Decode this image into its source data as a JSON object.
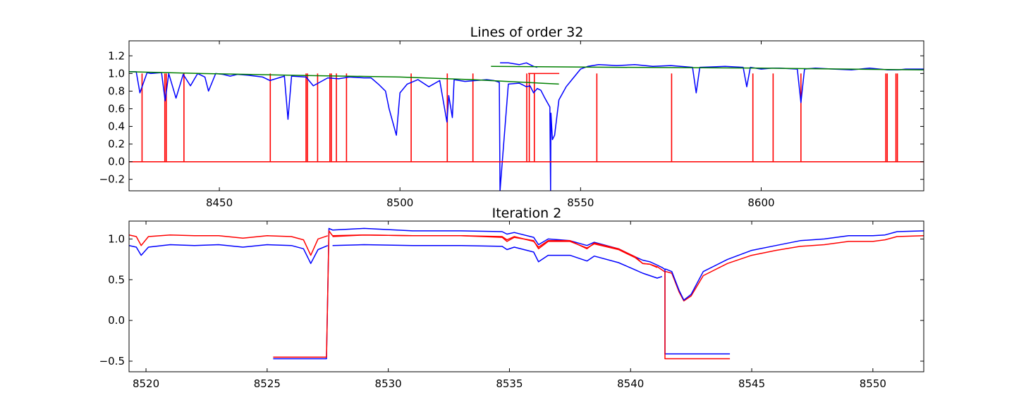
{
  "colors": {
    "spectrum": "#0000ff",
    "mask": "#ff0000",
    "continuum": "#008000",
    "axes": "#000000",
    "background": "#ffffff"
  },
  "chart_data": [
    {
      "type": "line",
      "title": "Lines of order 32",
      "xlabel": "",
      "ylabel": "",
      "xlim": [
        8425,
        8645
      ],
      "ylim": [
        -0.33,
        1.37
      ],
      "xticks": [
        8450,
        8500,
        8550,
        8600
      ],
      "yticks": [
        -0.2,
        0.0,
        0.2,
        0.4,
        0.6,
        0.8,
        1.0,
        1.2
      ],
      "xtick_labels": [
        "8450",
        "8500",
        "8550",
        "8600"
      ],
      "ytick_labels": [
        "−0.2",
        "0.0",
        "0.2",
        "0.4",
        "0.6",
        "0.8",
        "1.0",
        "1.2"
      ],
      "grid": false,
      "series": [
        {
          "color": "#0000ff",
          "style": "spectrum",
          "x": [
            8425,
            8427,
            8428,
            8430,
            8431,
            8434,
            8435,
            8436,
            8438,
            8440,
            8442,
            8444,
            8446,
            8447,
            8449,
            8451,
            8453,
            8455,
            8458,
            8462,
            8464,
            8468,
            8469,
            8470,
            8474,
            8476,
            8480,
            8483,
            8486,
            8490,
            8492,
            8494,
            8496,
            8497,
            8499,
            8500,
            8502,
            8505,
            8508,
            8511,
            8513,
            8513.5,
            8514.5,
            8515,
            8518,
            8521,
            8524,
            8526,
            8527.5,
            8527.7,
            8530,
            8533,
            8535,
            8536,
            8537,
            8538,
            8539,
            8540,
            8541.5,
            8541.7,
            8541.8,
            8542.2,
            8542.8,
            8544,
            8546,
            8548,
            8550,
            8552,
            8555,
            8560,
            8565,
            8570,
            8575,
            8581,
            8582,
            8583,
            8590,
            8595,
            8596,
            8597,
            8600,
            8603,
            8605,
            8610,
            8611,
            8612,
            8615,
            8620,
            8625,
            8630,
            8635,
            8638,
            8640,
            8645
          ],
          "y": [
            1.02,
            1.02,
            0.78,
            1.01,
            1.0,
            1.01,
            0.69,
            1.0,
            0.72,
            0.99,
            0.86,
            1.0,
            0.96,
            0.8,
            1.0,
            0.99,
            0.97,
            0.99,
            0.98,
            0.96,
            0.92,
            0.97,
            0.48,
            0.97,
            0.96,
            0.86,
            0.95,
            0.94,
            0.96,
            0.95,
            0.95,
            0.88,
            0.8,
            0.6,
            0.3,
            0.78,
            0.88,
            0.93,
            0.85,
            0.92,
            0.45,
            0.75,
            0.5,
            0.93,
            0.91,
            0.92,
            0.93,
            0.92,
            0.9,
            -0.33,
            0.88,
            0.89,
            0.85,
            0.86,
            0.78,
            0.83,
            0.81,
            0.73,
            0.62,
            -0.33,
            0.55,
            0.25,
            0.3,
            0.7,
            0.85,
            0.95,
            1.05,
            1.08,
            1.1,
            1.09,
            1.1,
            1.08,
            1.09,
            1.07,
            0.78,
            1.07,
            1.08,
            1.07,
            0.85,
            1.07,
            1.05,
            1.06,
            1.06,
            1.05,
            0.67,
            1.05,
            1.06,
            1.05,
            1.04,
            1.06,
            1.04,
            1.04,
            1.05,
            1.05
          ]
        },
        {
          "color": "#0000ff",
          "style": "spectrum",
          "x": [
            8527.7,
            8528,
            8530,
            8533,
            8535,
            8536,
            8537,
            8538
          ],
          "y": [
            1.12,
            1.12,
            1.12,
            1.1,
            1.12,
            1.1,
            1.08,
            1.07
          ]
        },
        {
          "color": "#008000",
          "style": "continuum",
          "x": [
            8425,
            8445,
            8470,
            8500,
            8520,
            8544
          ],
          "y": [
            1.02,
            1.0,
            0.98,
            0.96,
            0.93,
            0.88
          ]
        },
        {
          "color": "#008000",
          "style": "continuum",
          "x": [
            8525.2,
            8560,
            8600,
            8645
          ],
          "y": [
            1.08,
            1.07,
            1.06,
            1.04
          ]
        },
        {
          "color": "#ff0000",
          "style": "mask",
          "x": [
            8425,
            8645
          ],
          "y": [
            0,
            0
          ]
        },
        {
          "color": "#ff0000",
          "style": "short",
          "x": [
            8535.5,
            8544.1
          ],
          "y": [
            1.0,
            1.0
          ]
        }
      ],
      "mask_lines": [
        {
          "x": 8428.6
        },
        {
          "x": 8434.9
        },
        {
          "x": 8435.3
        },
        {
          "x": 8440.2
        },
        {
          "x": 8464.1
        },
        {
          "x": 8474.0
        },
        {
          "x": 8474.4
        },
        {
          "x": 8477.2
        },
        {
          "x": 8480.6
        },
        {
          "x": 8481.0
        },
        {
          "x": 8482.4
        },
        {
          "x": 8485.2
        },
        {
          "x": 8503.1
        },
        {
          "x": 8513.1
        },
        {
          "x": 8520.2
        },
        {
          "x": 8535.1
        },
        {
          "x": 8535.8
        },
        {
          "x": 8537.2
        },
        {
          "x": 8554.5
        },
        {
          "x": 8575.2
        },
        {
          "x": 8597.7
        },
        {
          "x": 8603.3
        },
        {
          "x": 8611.0
        },
        {
          "x": 8634.5
        },
        {
          "x": 8634.9
        },
        {
          "x": 8637.3
        },
        {
          "x": 8637.7
        }
      ]
    },
    {
      "type": "line",
      "title": "Iteration 2",
      "xlabel": "",
      "ylabel": "",
      "xlim": [
        8519.3,
        8552.1
      ],
      "ylim": [
        -0.63,
        1.22
      ],
      "xticks": [
        8520,
        8525,
        8530,
        8535,
        8540,
        8545,
        8550
      ],
      "yticks": [
        -0.5,
        0.0,
        0.5,
        1.0
      ],
      "xtick_labels": [
        "8520",
        "8525",
        "8530",
        "8535",
        "8540",
        "8545",
        "8550"
      ],
      "ytick_labels": [
        "−0.5",
        "0.0",
        "0.5",
        "1.0"
      ],
      "grid": false,
      "series": [
        {
          "color": "#0000ff",
          "x": [
            8519.3,
            8519.6,
            8519.8,
            8520.1,
            8521,
            8522,
            8523,
            8524,
            8525,
            8526,
            8526.5,
            8526.8,
            8527.1,
            8527.5
          ],
          "y": [
            0.92,
            0.9,
            0.8,
            0.9,
            0.93,
            0.92,
            0.93,
            0.9,
            0.93,
            0.92,
            0.88,
            0.7,
            0.87,
            0.92
          ]
        },
        {
          "color": "#ff0000",
          "x": [
            8519.3,
            8519.6,
            8519.8,
            8520.1,
            8521,
            8522,
            8523,
            8524,
            8525,
            8526,
            8526.5,
            8526.8,
            8527.1,
            8527.5
          ],
          "y": [
            1.05,
            1.03,
            0.92,
            1.03,
            1.05,
            1.04,
            1.04,
            1.01,
            1.04,
            1.03,
            0.99,
            0.8,
            1.0,
            1.04
          ]
        },
        {
          "color": "#0000ff",
          "x": [
            8525.25,
            8527.45,
            8527.55,
            8527.7,
            8529,
            8531,
            8533,
            8534.7,
            8534.9,
            8535.2,
            8536,
            8536.2,
            8536.6,
            8537.5,
            8538.2,
            8538.5,
            8539.5,
            8540.2,
            8540.5,
            8540.8,
            8541.1,
            8541.3,
            8541.4
          ],
          "y": [
            -0.47,
            -0.47,
            1.13,
            1.11,
            1.13,
            1.1,
            1.1,
            1.09,
            1.06,
            1.08,
            1.02,
            0.93,
            1.0,
            0.98,
            0.92,
            0.96,
            0.88,
            0.78,
            0.74,
            0.72,
            0.68,
            0.65,
            0.63
          ]
        },
        {
          "color": "#ff0000",
          "x": [
            8525.25,
            8527.45,
            8527.55,
            8527.7,
            8529,
            8531,
            8533,
            8534.7,
            8534.9,
            8535.2,
            8536,
            8536.2,
            8536.6,
            8537.5,
            8538.2,
            8538.5,
            8539.5,
            8540.2,
            8540.5,
            8540.8,
            8541.1,
            8541.3,
            8541.4
          ],
          "y": [
            -0.45,
            -0.45,
            1.1,
            1.04,
            1.05,
            1.04,
            1.04,
            1.02,
            0.97,
            1.02,
            0.98,
            0.88,
            0.97,
            0.97,
            0.89,
            0.94,
            0.87,
            0.77,
            0.7,
            0.69,
            0.66,
            0.62,
            0.6
          ]
        },
        {
          "color": "#ff0000",
          "x": [
            8527.7,
            8529,
            8531,
            8533,
            8534.7,
            8534.9,
            8535.2,
            8536,
            8536.2,
            8536.6,
            8537.5,
            8538.2,
            8538.5,
            8539.5,
            8540.2,
            8540.5,
            8540.8,
            8541.1
          ],
          "y": [
            1.03,
            1.05,
            1.04,
            1.04,
            1.03,
            0.99,
            1.03,
            0.97,
            0.9,
            0.98,
            0.98,
            0.88,
            0.95,
            0.88,
            0.78,
            0.7,
            0.69,
            0.65
          ]
        },
        {
          "color": "#0000ff",
          "x": [
            8527.7,
            8529,
            8531,
            8533,
            8534.7,
            8534.9,
            8535.2,
            8536,
            8536.2,
            8536.6,
            8537.5,
            8538.2,
            8538.5,
            8539.5,
            8540.2,
            8540.5,
            8540.8,
            8541.1,
            8541.3
          ],
          "y": [
            0.92,
            0.93,
            0.92,
            0.92,
            0.91,
            0.87,
            0.9,
            0.84,
            0.72,
            0.8,
            0.8,
            0.73,
            0.79,
            0.71,
            0.62,
            0.58,
            0.55,
            0.52,
            0.54
          ]
        },
        {
          "color": "#ff0000",
          "x": [
            8541.4,
            8541.45,
            8541.7,
            8542,
            8542.2,
            8542.5,
            8543,
            8544,
            8545,
            8546,
            8547,
            8548,
            8549,
            8550,
            8550.5,
            8551,
            8552.1
          ],
          "y": [
            0.6,
            0.6,
            0.58,
            0.35,
            0.24,
            0.3,
            0.55,
            0.7,
            0.8,
            0.86,
            0.91,
            0.93,
            0.97,
            0.97,
            0.99,
            1.03,
            1.04
          ]
        },
        {
          "color": "#0000ff",
          "x": [
            8541.4,
            8541.45,
            8541.7,
            8542,
            8542.2,
            8542.5,
            8543,
            8544,
            8545,
            8546,
            8547,
            8548,
            8549,
            8550,
            8550.5,
            8551,
            8552.1
          ],
          "y": [
            0.63,
            0.63,
            0.6,
            0.37,
            0.25,
            0.32,
            0.6,
            0.75,
            0.86,
            0.92,
            0.98,
            1.0,
            1.04,
            1.04,
            1.05,
            1.09,
            1.1
          ]
        },
        {
          "color": "#0000ff",
          "x": [
            8541.42,
            8541.42,
            8544.1
          ],
          "y": [
            0.63,
            -0.41,
            -0.41
          ]
        },
        {
          "color": "#ff0000",
          "x": [
            8541.42,
            8541.42,
            8544.1
          ],
          "y": [
            0.6,
            -0.47,
            -0.47
          ]
        }
      ]
    }
  ]
}
